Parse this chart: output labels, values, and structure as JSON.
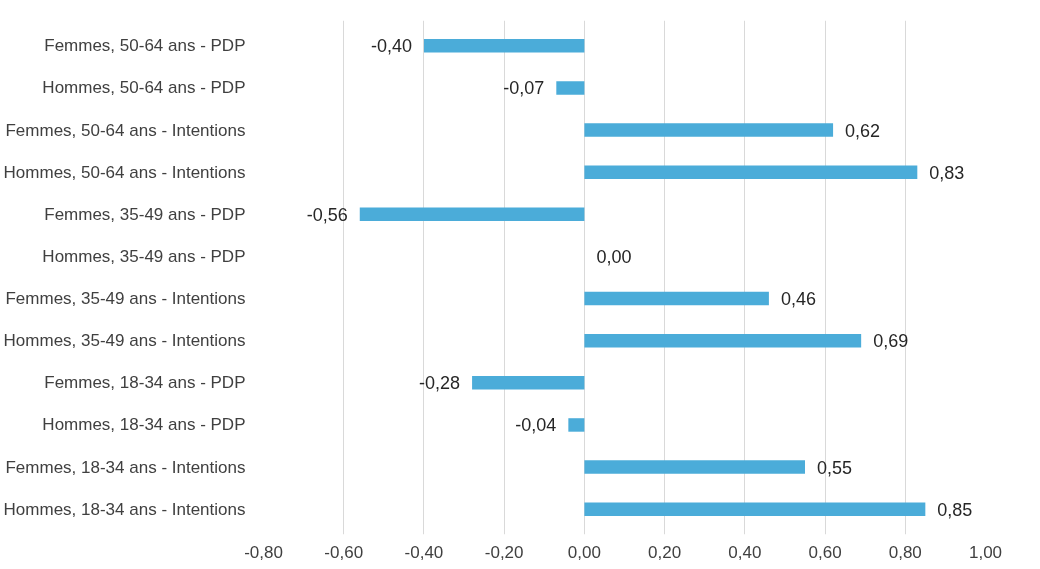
{
  "chart_data": {
    "type": "bar",
    "orientation": "horizontal",
    "categories": [
      "Femmes, 50-64 ans - PDP",
      "Hommes, 50-64 ans - PDP",
      "Femmes, 50-64 ans - Intentions",
      "Hommes, 50-64 ans - Intentions",
      "Femmes, 35-49 ans - PDP",
      "Hommes, 35-49 ans - PDP",
      "Femmes, 35-49 ans - Intentions",
      "Hommes, 35-49 ans - Intentions",
      "Femmes, 18-34 ans - PDP",
      "Hommes, 18-34 ans - PDP",
      "Femmes, 18-34 ans - Intentions",
      "Hommes, 18-34 ans - Intentions"
    ],
    "values": [
      -0.4,
      -0.07,
      0.62,
      0.83,
      -0.56,
      0.0,
      0.46,
      0.69,
      -0.28,
      -0.04,
      0.55,
      0.85
    ],
    "value_labels": [
      "-0,40",
      "-0,07",
      "0,62",
      "0,83",
      "-0,56",
      "0,00",
      "0,46",
      "0,69",
      "-0,28",
      "-0,04",
      "0,55",
      "0,85"
    ],
    "color": "#4bacd9",
    "xlim": [
      -0.8,
      1.0
    ],
    "xticks": [
      {
        "value": -0.8,
        "label": "-0,80"
      },
      {
        "value": -0.6,
        "label": "-0,60"
      },
      {
        "value": -0.4,
        "label": "-0,40"
      },
      {
        "value": -0.2,
        "label": "-0,20"
      },
      {
        "value": 0,
        "label": "0,00"
      },
      {
        "value": 0.2,
        "label": "0,20"
      },
      {
        "value": 0.4,
        "label": "0,40"
      },
      {
        "value": 0.6,
        "label": "0,60"
      },
      {
        "value": 0.8,
        "label": "0,80"
      },
      {
        "value": 1.0,
        "label": "1,00"
      }
    ],
    "grid": "x"
  }
}
